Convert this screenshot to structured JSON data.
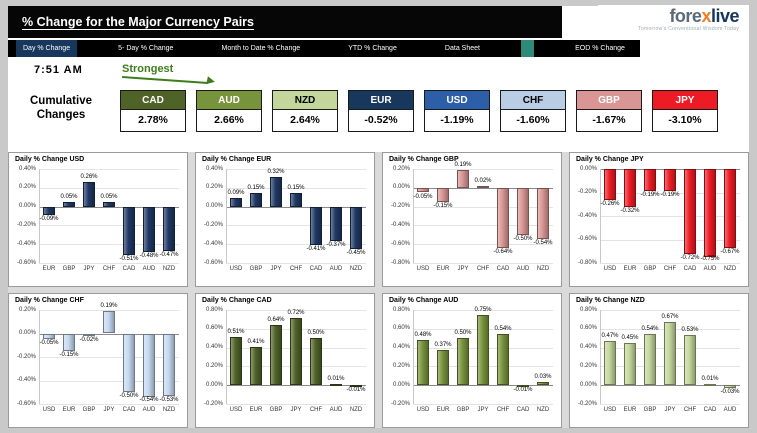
{
  "header": {
    "title": "% Change for the Major Currency Pairs",
    "logo": {
      "part1": "fore",
      "x": "x",
      "part2": "live",
      "tagline": "Tomorrow's Conventional Wisdom Today"
    }
  },
  "nav": {
    "tabs": [
      {
        "label": "Day % Change",
        "active": true
      },
      {
        "label": "5- Day % Change",
        "active": false
      },
      {
        "label": "Month to Date % Change",
        "active": false
      },
      {
        "label": "YTD % Change",
        "active": false
      },
      {
        "label": "Data Sheet",
        "active": false
      },
      {
        "label": "EOD % Change",
        "active": false
      }
    ],
    "accent_color": "#2e8b7a"
  },
  "toolbar": {
    "time": "7:51 AM",
    "strongest_label": "Strongest",
    "strongest_color": "#3e7d1c"
  },
  "cumulative": {
    "label_line1": "Cumulative",
    "label_line2": "Changes",
    "items": [
      {
        "code": "CAD",
        "value": "2.78%",
        "color": "#4f6228",
        "text": "#ffffff"
      },
      {
        "code": "AUD",
        "value": "2.66%",
        "color": "#77933c",
        "text": "#ffffff"
      },
      {
        "code": "NZD",
        "value": "2.64%",
        "color": "#c3d69b",
        "text": "#000000"
      },
      {
        "code": "EUR",
        "value": "-0.52%",
        "color": "#17375d",
        "text": "#ffffff"
      },
      {
        "code": "USD",
        "value": "-1.19%",
        "color": "#2c5fa8",
        "text": "#ffffff"
      },
      {
        "code": "CHF",
        "value": "-1.60%",
        "color": "#b9cde4",
        "text": "#000000"
      },
      {
        "code": "GBP",
        "value": "-1.67%",
        "color": "#d99694",
        "text": "#ffffff"
      },
      {
        "code": "JPY",
        "value": "-3.10%",
        "color": "#ed1c24",
        "text": "#ffffff"
      }
    ]
  },
  "chart_data": [
    {
      "type": "bar",
      "title": "Daily % Change USD",
      "color": "#1f3864",
      "ylim": [
        -0.6,
        0.4
      ],
      "yticks": [
        0.4,
        0.2,
        0,
        -0.2,
        -0.4,
        -0.6
      ],
      "categories": [
        "EUR",
        "GBP",
        "JPY",
        "CHF",
        "CAD",
        "AUD",
        "NZD"
      ],
      "values": [
        -0.09,
        0.05,
        0.26,
        0.05,
        -0.51,
        -0.48,
        -0.47
      ]
    },
    {
      "type": "bar",
      "title": "Daily % Change EUR",
      "color": "#1f3864",
      "ylim": [
        -0.6,
        0.4
      ],
      "yticks": [
        0.4,
        0.2,
        0,
        -0.2,
        -0.4,
        -0.6
      ],
      "categories": [
        "USD",
        "GBP",
        "JPY",
        "CHF",
        "CAD",
        "AUD",
        "NZD"
      ],
      "values": [
        0.09,
        0.15,
        0.32,
        0.15,
        -0.41,
        -0.37,
        -0.45
      ]
    },
    {
      "type": "bar",
      "title": "Daily % Change GBP",
      "color": "#d99694",
      "ylim": [
        -0.8,
        0.2
      ],
      "yticks": [
        0.2,
        0,
        -0.2,
        -0.4,
        -0.6,
        -0.8
      ],
      "categories": [
        "USD",
        "EUR",
        "JPY",
        "CHF",
        "CAD",
        "AUD",
        "NZD"
      ],
      "values": [
        -0.05,
        -0.15,
        0.19,
        0.02,
        -0.64,
        -0.5,
        -0.54
      ]
    },
    {
      "type": "bar",
      "title": "Daily % Change JPY",
      "color": "#ed1c24",
      "ylim": [
        -0.8,
        0
      ],
      "yticks": [
        0,
        -0.2,
        -0.4,
        -0.6,
        -0.8
      ],
      "categories": [
        "USD",
        "EUR",
        "GBP",
        "CHF",
        "CAD",
        "AUD",
        "NZD"
      ],
      "values": [
        -0.26,
        -0.32,
        -0.19,
        -0.19,
        -0.72,
        -0.75,
        -0.67
      ]
    },
    {
      "type": "bar",
      "title": "Daily % Change CHF",
      "color": "#c6d9f1",
      "ylim": [
        -0.6,
        0.2
      ],
      "yticks": [
        0.2,
        0,
        -0.2,
        -0.4,
        -0.6
      ],
      "categories": [
        "USD",
        "EUR",
        "GBP",
        "JPY",
        "CAD",
        "AUD",
        "NZD"
      ],
      "values": [
        -0.05,
        -0.15,
        -0.02,
        0.19,
        -0.5,
        -0.54,
        -0.53
      ]
    },
    {
      "type": "bar",
      "title": "Daily % Change CAD",
      "color": "#4f6228",
      "ylim": [
        -0.2,
        0.8
      ],
      "yticks": [
        0.8,
        0.6,
        0.4,
        0.2,
        0,
        -0.2
      ],
      "categories": [
        "USD",
        "EUR",
        "GBP",
        "JPY",
        "CHF",
        "AUD",
        "NZD"
      ],
      "values": [
        0.51,
        0.41,
        0.64,
        0.72,
        0.5,
        0.01,
        -0.01
      ]
    },
    {
      "type": "bar",
      "title": "Daily % Change AUD",
      "color": "#77933c",
      "ylim": [
        -0.2,
        0.8
      ],
      "yticks": [
        0.8,
        0.6,
        0.4,
        0.2,
        0,
        -0.2
      ],
      "categories": [
        "USD",
        "EUR",
        "GBP",
        "JPY",
        "CHF",
        "CAD",
        "NZD"
      ],
      "values": [
        0.48,
        0.37,
        0.5,
        0.75,
        0.54,
        -0.01,
        0.03
      ]
    },
    {
      "type": "bar",
      "title": "Daily % Change NZD",
      "color": "#c3d69b",
      "ylim": [
        -0.2,
        0.8
      ],
      "yticks": [
        0.8,
        0.6,
        0.4,
        0.2,
        0,
        -0.2
      ],
      "categories": [
        "USD",
        "EUR",
        "GBP",
        "JPY",
        "CHF",
        "CAD",
        "AUD"
      ],
      "values": [
        0.47,
        0.45,
        0.54,
        0.67,
        0.53,
        0.01,
        -0.03
      ]
    }
  ]
}
